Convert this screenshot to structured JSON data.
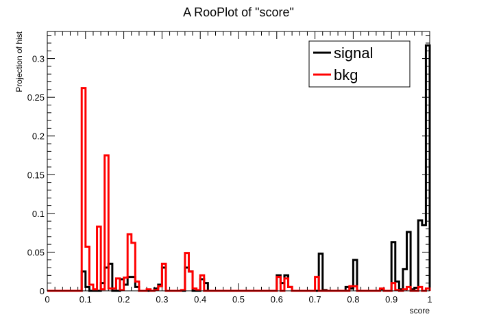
{
  "chart_data": {
    "type": "step-histogram",
    "title": "A RooPlot of \"score\"",
    "xlabel": "score",
    "ylabel": "Projection of hist",
    "xlim": [
      0,
      1
    ],
    "ylim": [
      0,
      0.335
    ],
    "xticks": [
      "0",
      "0.1",
      "0.2",
      "0.3",
      "0.4",
      "0.5",
      "0.6",
      "0.7",
      "0.8",
      "0.9",
      "1"
    ],
    "yticks": [
      "0",
      "0.05",
      "0.1",
      "0.15",
      "0.2",
      "0.25",
      "0.3"
    ],
    "legend_position": "top-right",
    "bin_width": 0.01,
    "series": [
      {
        "name": "signal",
        "color": "#000000",
        "values": [
          0,
          0,
          0,
          0,
          0,
          0,
          0,
          0,
          0,
          0.025,
          0.005,
          0,
          0,
          0,
          0.01,
          0.03,
          0.035,
          0,
          0,
          0.015,
          0.008,
          0.018,
          0.018,
          0.005,
          0,
          0,
          0,
          0,
          0.003,
          0.008,
          0.03,
          0,
          0,
          0,
          0,
          0,
          0.03,
          0.025,
          0,
          0,
          0.015,
          0.01,
          0,
          0,
          0,
          0,
          0,
          0,
          0,
          0,
          0,
          0,
          0,
          0,
          0,
          0,
          0,
          0,
          0,
          0,
          0.02,
          0.01,
          0.02,
          0.005,
          0,
          0,
          0,
          0,
          0,
          0,
          0,
          0.048,
          0.001,
          0,
          0,
          0,
          0,
          0,
          0.005,
          0.003,
          0.04,
          0,
          0,
          0,
          0,
          0,
          0,
          0.002,
          0,
          0,
          0.063,
          0.012,
          0.002,
          0.028,
          0.076,
          0.002,
          0.004,
          0.091,
          0.085,
          0.317
        ]
      },
      {
        "name": "bkg",
        "color": "#ff0000",
        "values": [
          0,
          0,
          0,
          0,
          0,
          0,
          0,
          0,
          0,
          0.262,
          0.057,
          0.008,
          0.002,
          0.083,
          0.002,
          0.175,
          0.003,
          0.003,
          0.016,
          0.001,
          0.017,
          0.073,
          0.062,
          0.012,
          0,
          0,
          0.002,
          0,
          0.001,
          0.006,
          0.035,
          0,
          0,
          0,
          0,
          0.001,
          0.049,
          0.025,
          0.003,
          0.001,
          0.02,
          0,
          0,
          0,
          0,
          0,
          0,
          0,
          0,
          0,
          0,
          0,
          0,
          0,
          0,
          0,
          0,
          0,
          0,
          0,
          0.018,
          0,
          0.016,
          0.005,
          0,
          0,
          0,
          0,
          0,
          0,
          0.018,
          0,
          0,
          0,
          0,
          0,
          0,
          0,
          0,
          0.006,
          0.006,
          0,
          0,
          0,
          0,
          0,
          0,
          0.003,
          0,
          0,
          0.01,
          0.001,
          0,
          0.002,
          0.005,
          0,
          0,
          0.005,
          0,
          0.003
        ]
      }
    ]
  }
}
